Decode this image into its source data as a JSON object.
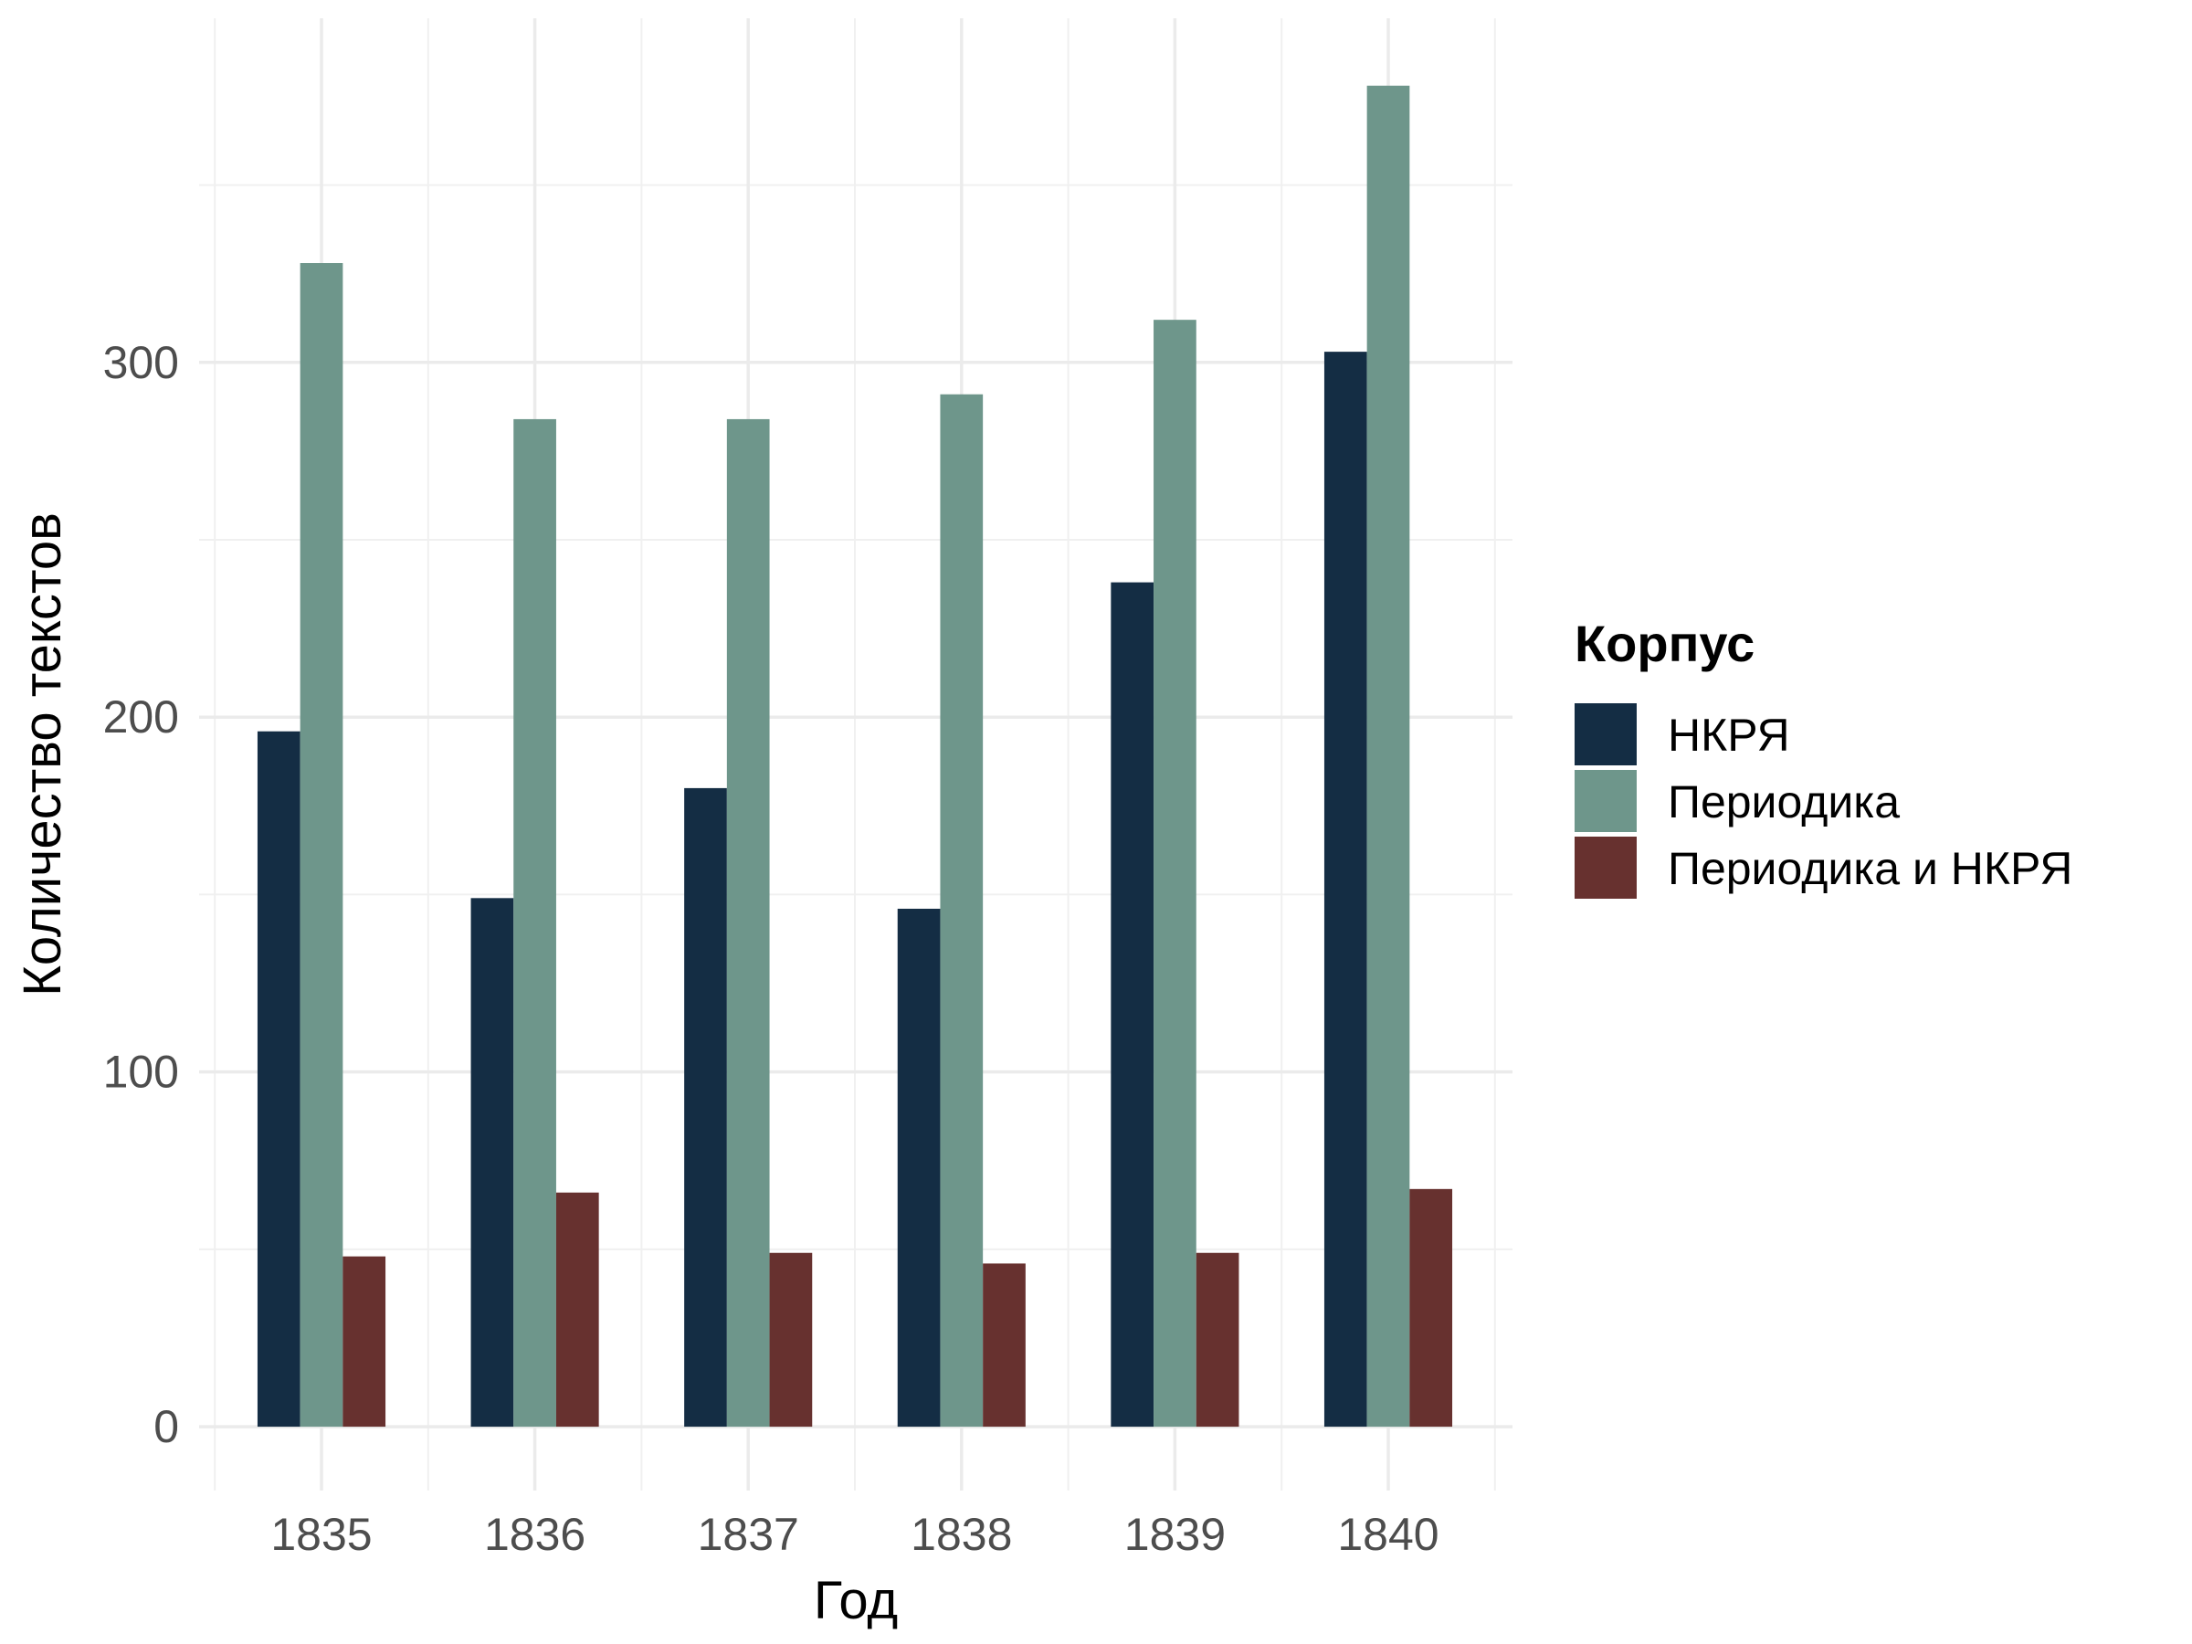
{
  "chart_data": {
    "type": "bar",
    "categories": [
      "1835",
      "1836",
      "1837",
      "1838",
      "1839",
      "1840"
    ],
    "series": [
      {
        "name": "НКРЯ",
        "color": "#142d44",
        "values": [
          196,
          149,
          180,
          146,
          238,
          303
        ]
      },
      {
        "name": "Периодика",
        "color": "#6e968b",
        "values": [
          328,
          284,
          284,
          291,
          312,
          378
        ]
      },
      {
        "name": "Периодика и НКРЯ",
        "color": "#67312f",
        "values": [
          48,
          66,
          49,
          46,
          49,
          67
        ]
      }
    ],
    "xlabel": "Год",
    "ylabel": "Количество текстов",
    "ylim": [
      -18,
      397
    ],
    "yticks": [
      0,
      100,
      200,
      300
    ],
    "ytick_labels": [
      "0",
      "100",
      "200",
      "300"
    ],
    "grid": true,
    "legend": {
      "title": "Корпус",
      "position": "right"
    }
  }
}
